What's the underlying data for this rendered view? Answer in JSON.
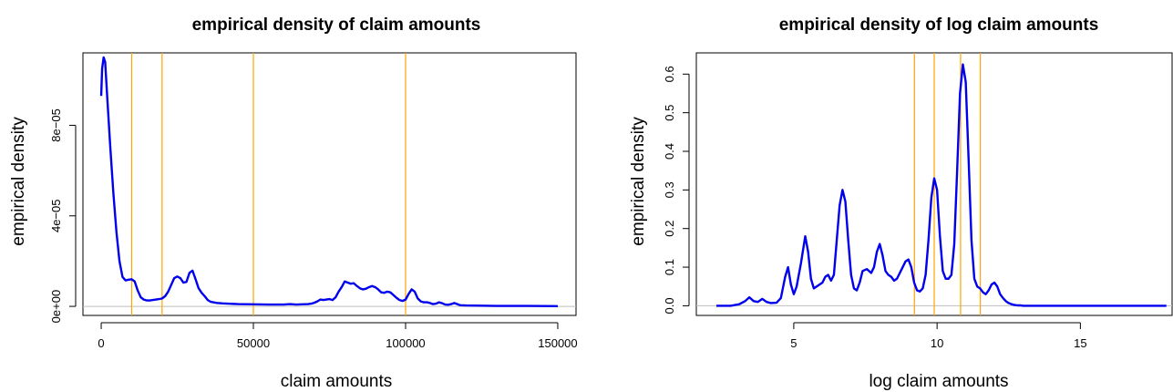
{
  "chart_data": [
    {
      "type": "line",
      "title": "empirical density of claim amounts",
      "xlabel": "claim amounts",
      "ylabel": "empirical density",
      "xlim": [
        -6000,
        156000
      ],
      "ylim": [
        -4e-06,
        0.000112
      ],
      "xticks": [
        0,
        50000,
        100000,
        150000
      ],
      "xtick_labels": [
        "0",
        "50000",
        "100000",
        "150000"
      ],
      "yticks": [
        0,
        4e-05,
        8e-05
      ],
      "ytick_labels": [
        "0e+00",
        "4e−05",
        "8e−05"
      ],
      "baseline": 0,
      "vlines": [
        10000,
        20000,
        50000,
        100000
      ],
      "colors": {
        "line": "#0000ee",
        "vlines": "#ffa500",
        "baseline": "#bebebe"
      },
      "series": [
        {
          "x": [
            0,
            300,
            800,
            1300,
            2000,
            3000,
            4000,
            5000,
            6000,
            7000,
            8000,
            9000,
            10000,
            11000,
            12000,
            13000,
            14000,
            15000,
            16000,
            17000,
            18000,
            19000,
            20000,
            21000,
            22000,
            23000,
            24000,
            25000,
            26000,
            27000,
            28000,
            29000,
            30000,
            31000,
            32000,
            33000,
            34000,
            35000,
            36000,
            38000,
            40000,
            45000,
            50000,
            55000,
            60000,
            62000,
            64000,
            66000,
            68000,
            69000,
            70000,
            71000,
            72000,
            73000,
            74000,
            75000,
            76000,
            77000,
            78000,
            79000,
            80000,
            81000,
            82000,
            83000,
            84000,
            85000,
            86000,
            87000,
            88000,
            89000,
            90000,
            91000,
            92000,
            93000,
            94000,
            95000,
            96000,
            97000,
            98000,
            99000,
            100000,
            101000,
            102000,
            103000,
            104000,
            105000,
            106000,
            107000,
            108000,
            109000,
            110000,
            111000,
            112000,
            113000,
            114000,
            115000,
            116000,
            117000,
            118000,
            120000,
            125000,
            130000,
            140000,
            150000
          ],
          "y": [
            9.3e-05,
            0.000105,
            0.00011,
            0.000108,
            9.2e-05,
            7e-05,
            5e-05,
            3.3e-05,
            2e-05,
            1.3e-05,
            1.15e-05,
            1.18e-05,
            1.2e-05,
            1.1e-05,
            7e-06,
            4e-06,
            3e-06,
            2.6e-06,
            2.6e-06,
            2.8e-06,
            3e-06,
            3.2e-06,
            3.5e-06,
            4.5e-06,
            6.5e-06,
            9.5e-06,
            1.25e-05,
            1.32e-05,
            1.25e-05,
            1.05e-05,
            1.08e-05,
            1.48e-05,
            1.58e-05,
            1.2e-05,
            8e-06,
            6e-06,
            4.5e-06,
            2.8e-06,
            2e-06,
            1.5e-06,
            1.3e-06,
            1e-06,
            9e-07,
            8e-07,
            8e-07,
            1e-06,
            8e-07,
            9e-07,
            1e-06,
            1.2e-06,
            1.6e-06,
            2.2e-06,
            3e-06,
            2.8e-06,
            3e-06,
            3.2e-06,
            2.8e-06,
            4e-06,
            6.5e-06,
            8.5e-06,
            1.1e-05,
            1.05e-05,
            1e-05,
            1.02e-05,
            9e-06,
            8e-06,
            7.5e-06,
            7.8e-06,
            8.5e-06,
            9e-06,
            8.5e-06,
            7.5e-06,
            6.2e-06,
            6e-06,
            6.5e-06,
            6.2e-06,
            5e-06,
            3.8e-06,
            2.8e-06,
            2.4e-06,
            3e-06,
            5.5e-06,
            7.5e-06,
            6.5e-06,
            3.5e-06,
            2.2e-06,
            1.8e-06,
            1.8e-06,
            1.5e-06,
            1e-06,
            1.2e-06,
            1.8e-06,
            1.4e-06,
            8e-07,
            7e-07,
            1e-06,
            1.5e-06,
            1e-06,
            5e-07,
            4e-07,
            3e-07,
            2e-07,
            2e-07,
            1e-07
          ]
        }
      ]
    },
    {
      "type": "line",
      "title": "empirical density of log claim amounts",
      "xlabel": "log claim amounts",
      "ylabel": "empirical density",
      "xlim": [
        1.6,
        18.2
      ],
      "ylim": [
        -0.025,
        0.655
      ],
      "xticks": [
        5,
        10,
        15
      ],
      "xtick_labels": [
        "5",
        "10",
        "15"
      ],
      "yticks": [
        0,
        0.1,
        0.2,
        0.3,
        0.4,
        0.5,
        0.6
      ],
      "ytick_labels": [
        "0.0",
        "0.1",
        "0.2",
        "0.3",
        "0.4",
        "0.5",
        "0.6"
      ],
      "baseline": 0,
      "vlines": [
        9.21,
        9.9,
        10.82,
        11.51
      ],
      "colors": {
        "line": "#0000ee",
        "vlines": "#ffa500",
        "baseline": "#bebebe"
      },
      "series": [
        {
          "x": [
            2.3,
            2.8,
            3.1,
            3.3,
            3.45,
            3.6,
            3.75,
            3.9,
            4.05,
            4.2,
            4.4,
            4.55,
            4.7,
            4.8,
            4.9,
            5.0,
            5.1,
            5.25,
            5.4,
            5.5,
            5.6,
            5.7,
            5.8,
            5.9,
            6.0,
            6.1,
            6.2,
            6.3,
            6.4,
            6.5,
            6.6,
            6.7,
            6.8,
            6.9,
            7.0,
            7.1,
            7.2,
            7.3,
            7.4,
            7.55,
            7.7,
            7.8,
            7.9,
            8.0,
            8.1,
            8.2,
            8.3,
            8.4,
            8.5,
            8.6,
            8.7,
            8.8,
            8.9,
            9.0,
            9.1,
            9.2,
            9.3,
            9.4,
            9.5,
            9.6,
            9.7,
            9.8,
            9.9,
            10.0,
            10.1,
            10.2,
            10.3,
            10.4,
            10.5,
            10.6,
            10.7,
            10.8,
            10.9,
            11.0,
            11.1,
            11.2,
            11.3,
            11.4,
            11.5,
            11.6,
            11.7,
            11.8,
            11.9,
            12.0,
            12.1,
            12.2,
            12.3,
            12.4,
            12.5,
            12.6,
            12.7,
            12.8,
            12.9,
            13.0,
            13.2,
            13.5,
            14.0,
            15.0,
            16.0,
            17.0,
            18.0
          ],
          "y": [
            0.0,
            0.0,
            0.004,
            0.012,
            0.022,
            0.012,
            0.01,
            0.018,
            0.01,
            0.007,
            0.008,
            0.02,
            0.075,
            0.1,
            0.055,
            0.03,
            0.05,
            0.11,
            0.18,
            0.14,
            0.07,
            0.045,
            0.05,
            0.055,
            0.06,
            0.075,
            0.08,
            0.065,
            0.08,
            0.17,
            0.26,
            0.3,
            0.27,
            0.17,
            0.08,
            0.045,
            0.04,
            0.06,
            0.09,
            0.095,
            0.085,
            0.1,
            0.14,
            0.16,
            0.13,
            0.09,
            0.08,
            0.075,
            0.065,
            0.07,
            0.085,
            0.1,
            0.115,
            0.12,
            0.1,
            0.06,
            0.04,
            0.037,
            0.045,
            0.08,
            0.17,
            0.28,
            0.33,
            0.3,
            0.18,
            0.09,
            0.07,
            0.07,
            0.08,
            0.16,
            0.35,
            0.55,
            0.625,
            0.58,
            0.38,
            0.17,
            0.07,
            0.05,
            0.045,
            0.035,
            0.03,
            0.04,
            0.055,
            0.06,
            0.05,
            0.03,
            0.02,
            0.012,
            0.007,
            0.004,
            0.002,
            0.001,
            0.001,
            0.0,
            0.0,
            0.0,
            0.0,
            0.0,
            0.0,
            0.0,
            0.0
          ]
        }
      ]
    }
  ]
}
